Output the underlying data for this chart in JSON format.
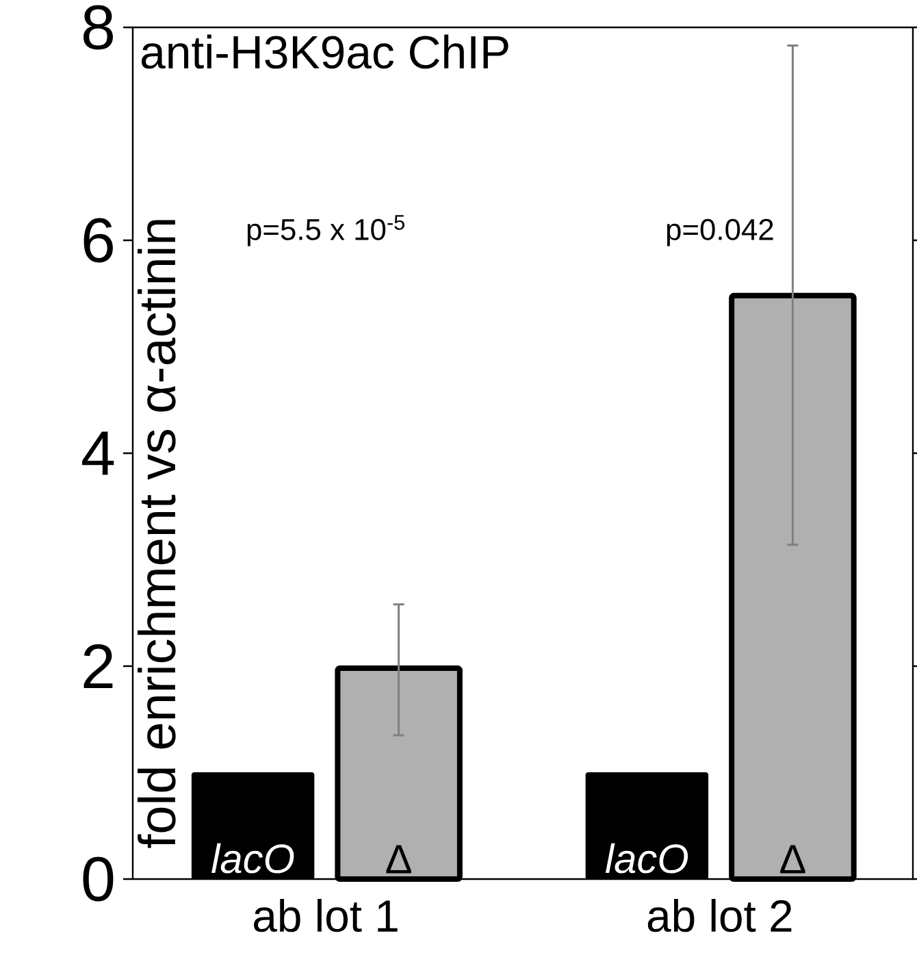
{
  "chart_data": {
    "type": "bar",
    "title": "anti-H3K9ac ChIP",
    "ylabel": "fold enrichment vs α-actinin",
    "categories": [
      "ab lot 1",
      "ab lot 2"
    ],
    "series": [
      {
        "name": "lacO",
        "color": "#000000",
        "values": [
          1,
          1
        ]
      },
      {
        "name": "Δ",
        "color": "#b0b0b0",
        "values": [
          1.98,
          5.48
        ],
        "errors": [
          [
            1.35,
            2.58
          ],
          [
            3.14,
            7.83
          ]
        ]
      }
    ],
    "annotations": [
      "p=5.5 x 10$^{-5}$",
      "p=0.042"
    ],
    "ylim": [
      0,
      8
    ],
    "yticks": [
      0,
      2,
      4,
      6,
      8
    ],
    "grid": false,
    "legend": "bottom left"
  }
}
